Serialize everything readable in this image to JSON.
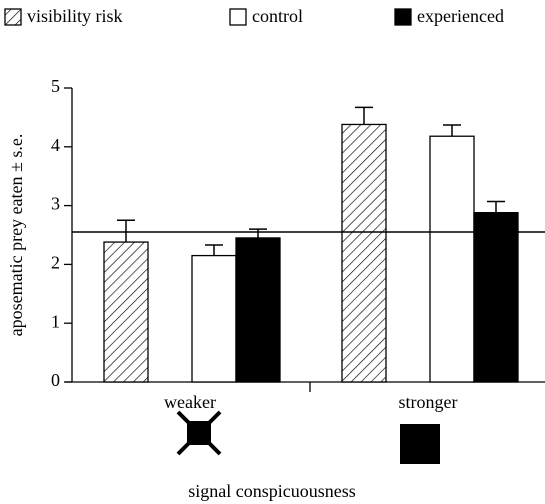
{
  "chart_data": {
    "type": "bar",
    "ylabel": "aposematic prey eaten ± s.e.",
    "xlabel": "signal conspicuousness",
    "categories": [
      "weaker",
      "stronger"
    ],
    "series": [
      {
        "name": "visibility risk",
        "color": "#ffffff",
        "pattern": "hatch",
        "values": [
          2.38,
          4.38
        ],
        "errors": [
          0.37,
          0.29
        ]
      },
      {
        "name": "control",
        "color": "#ffffff",
        "values": [
          2.15,
          4.18
        ],
        "errors": [
          0.18,
          0.19
        ]
      },
      {
        "name": "experienced",
        "color": "#000000",
        "values": [
          2.45,
          2.88
        ],
        "errors": [
          0.15,
          0.19
        ]
      }
    ],
    "hline": 2.55,
    "ylim": [
      0,
      5
    ],
    "yticks": [
      0,
      1,
      2,
      3,
      4,
      5
    ],
    "legend": "top"
  }
}
